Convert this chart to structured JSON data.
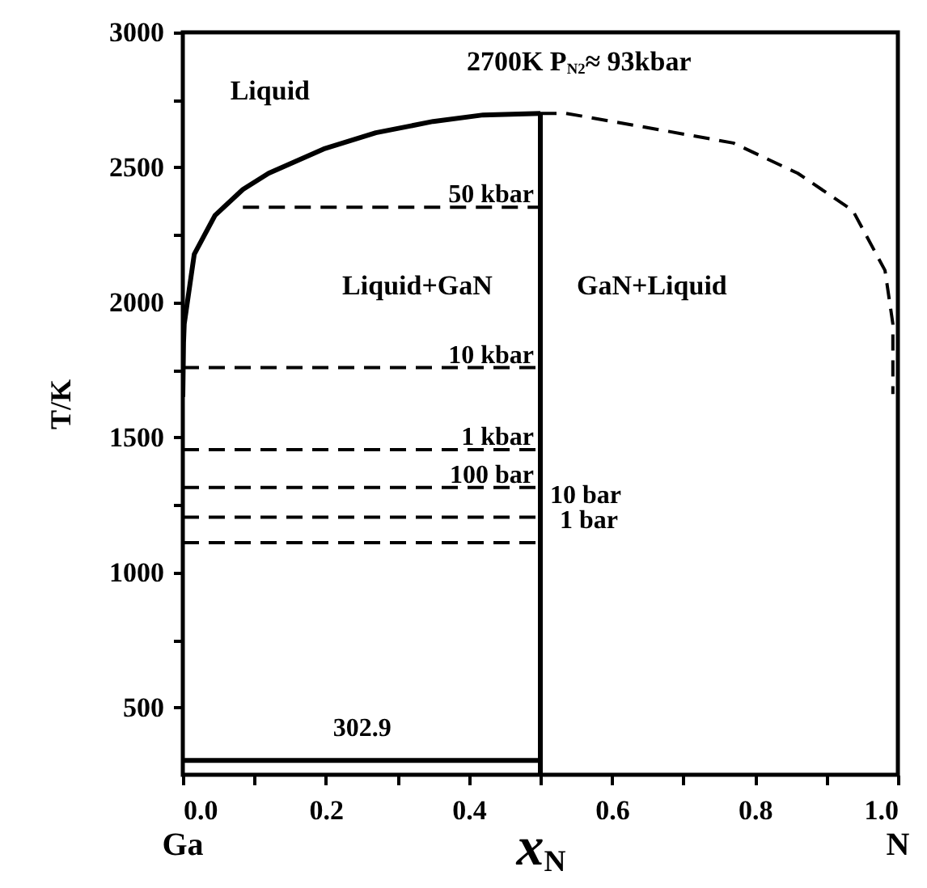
{
  "chart_data": {
    "type": "line",
    "xlabel": "x$_{N}$",
    "ylabel": "T/K",
    "xlim": [
      0,
      1
    ],
    "ylim": [
      250,
      3000
    ],
    "xticks": [
      {
        "value": 0,
        "label": "0.0"
      },
      {
        "value": 0.1,
        "label": null
      },
      {
        "value": 0.2,
        "label": "0.2"
      },
      {
        "value": 0.3,
        "label": null
      },
      {
        "value": 0.4,
        "label": "0.4"
      },
      {
        "value": 0.5,
        "label": null
      },
      {
        "value": 0.6,
        "label": "0.6"
      },
      {
        "value": 0.7,
        "label": null
      },
      {
        "value": 0.8,
        "label": "0.8"
      },
      {
        "value": 0.9,
        "label": null
      },
      {
        "value": 1,
        "label": "1.0"
      }
    ],
    "yticks": [
      500,
      {
        "value": 750,
        "label": null
      },
      1000,
      {
        "value": 1250,
        "label": null
      },
      1500,
      {
        "value": 1750,
        "label": null
      },
      2000,
      {
        "value": 2250,
        "label": null
      },
      2500,
      {
        "value": 2750,
        "label": null
      },
      3000
    ],
    "grid": false,
    "marker": "none",
    "series": [
      {
        "color": "#000000",
        "line_style": "solid",
        "x": [
          0,
          0.001,
          0.002,
          0.016,
          0.045,
          0.084,
          0.12,
          0.197,
          0.27,
          0.35,
          0.42,
          0.5
        ],
        "values": [
          1650,
          1850,
          1920,
          2178,
          2322,
          2418,
          2478,
          2568,
          2628,
          2670,
          2694,
          2700
        ]
      },
      {
        "color": "#000000",
        "line_style": "dashed",
        "x": [
          0.5,
          0.536,
          0.665,
          0.77,
          0.86,
          0.937,
          0.982,
          0.993,
          0.993
        ],
        "values": [
          2700,
          2700,
          2640,
          2590,
          2478,
          2340,
          2118,
          1920,
          1660
        ]
      },
      {
        "color": "#000000",
        "line_style": "solid",
        "x": [
          0.5,
          0.5
        ],
        "values": [
          250,
          2700
        ]
      },
      {
        "name": "302.9",
        "color": "#000000",
        "line_style": "solid",
        "x": [
          0,
          0.5
        ],
        "values": [
          302.9,
          302.9
        ]
      },
      {
        "name": "50 kbar",
        "color": "#000000",
        "line_style": "dashed",
        "x": [
          0.084,
          0.5
        ],
        "values": [
          2352,
          2352
        ]
      },
      {
        "name": "10 kbar",
        "color": "#000000",
        "line_style": "dashed",
        "x": [
          0,
          0.5
        ],
        "values": [
          1758,
          1758
        ]
      },
      {
        "name": "1 kbar",
        "color": "#000000",
        "line_style": "dashed",
        "x": [
          0,
          0.5
        ],
        "values": [
          1454,
          1454
        ]
      },
      {
        "name": "100 bar",
        "color": "#000000",
        "line_style": "dashed",
        "x": [
          0,
          0.5
        ],
        "values": [
          1314,
          1314
        ]
      },
      {
        "name": "10 bar",
        "color": "#000000",
        "line_style": "dashed",
        "x": [
          0,
          0.5
        ],
        "values": [
          1204,
          1204
        ]
      },
      {
        "name": "1 bar",
        "color": "#000000",
        "line_style": "dashed",
        "x": [
          0,
          0.5
        ],
        "values": [
          1110,
          1110
        ]
      }
    ],
    "annotations": [
      "Liquid",
      "2700K P$_{N2}$≈ 93kbar",
      "Liquid+GaN",
      "GaN+Liquid",
      "Ga",
      "N"
    ]
  }
}
